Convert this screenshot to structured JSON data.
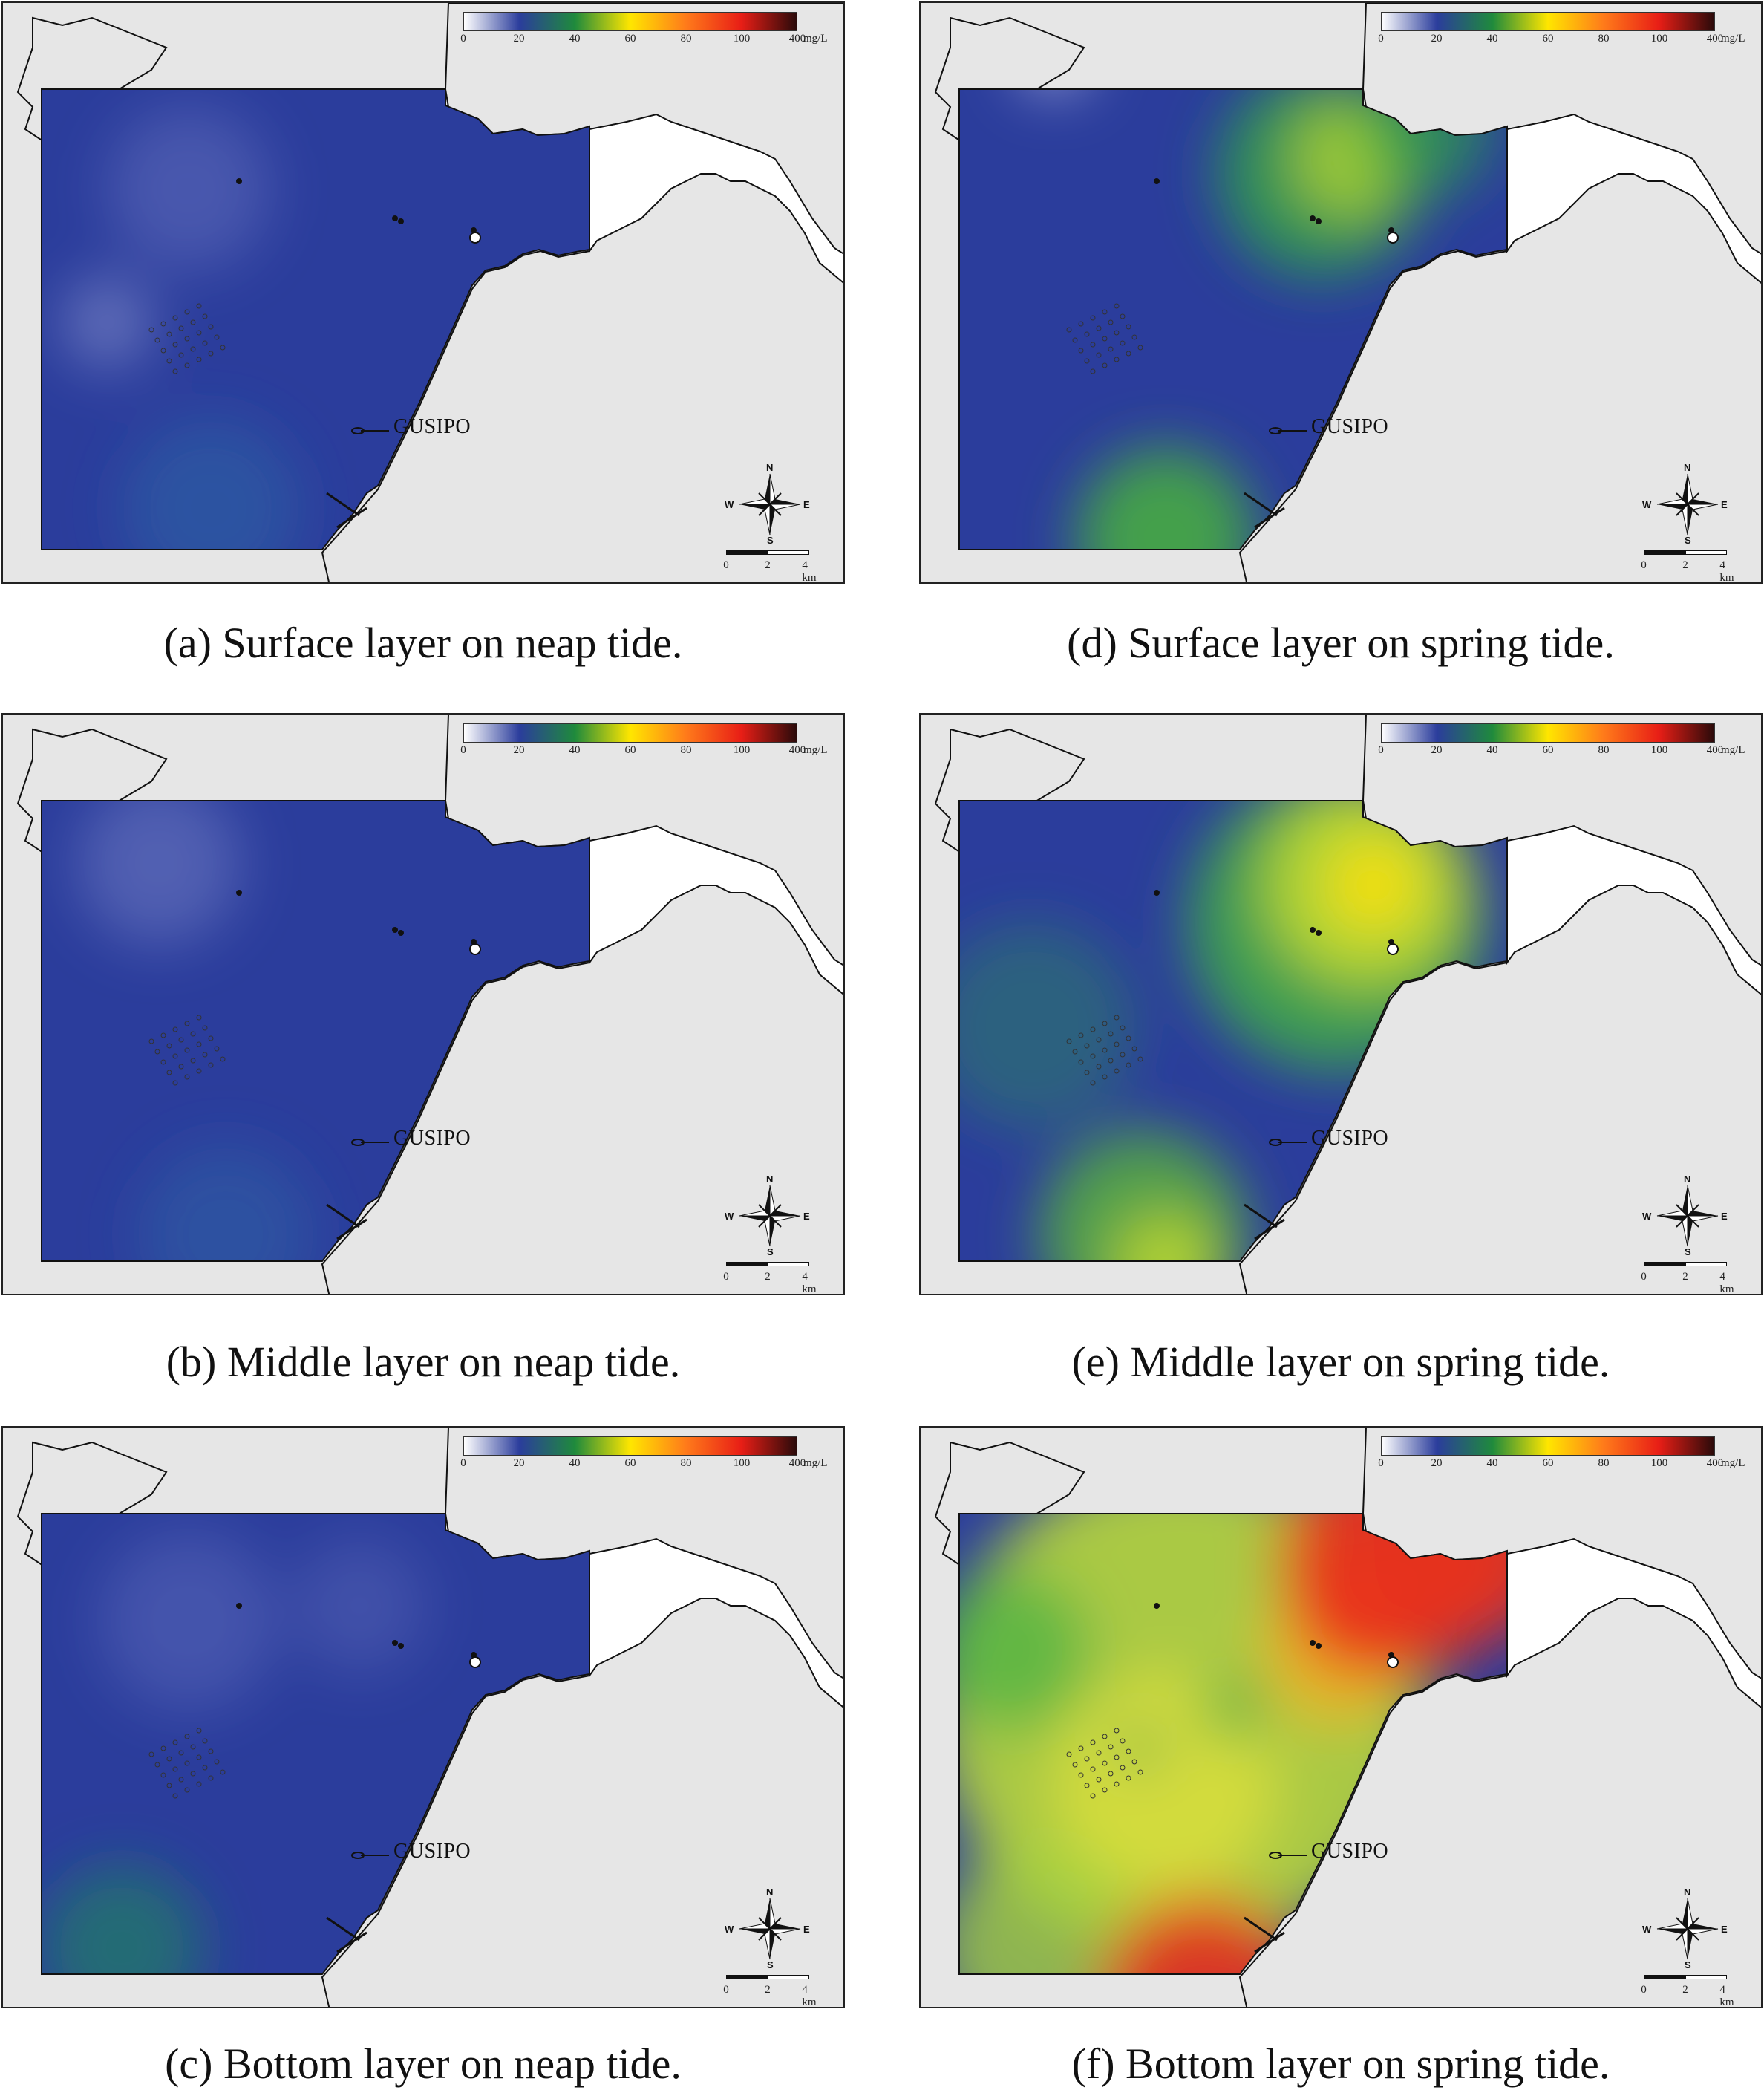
{
  "legend": {
    "ticks": [
      "0",
      "20",
      "40",
      "60",
      "80",
      "100",
      "400"
    ],
    "unit": "mg/L",
    "colors": [
      "#ffffff",
      "#2b3d9c",
      "#1f8a3c",
      "#ffe600",
      "#ff7b1a",
      "#e81e16",
      "#2a0a0a"
    ]
  },
  "map": {
    "station_label": "GUSIPO",
    "compass": {
      "n": "N",
      "s": "S",
      "e": "E",
      "w": "W"
    },
    "scale_ticks": [
      "0",
      "2",
      "4 km"
    ]
  },
  "panels": [
    {
      "id": "a",
      "caption": "(a) Surface layer on neap tide.",
      "scenario": "neap-surface"
    },
    {
      "id": "d",
      "caption": "(d) Surface layer on spring tide.",
      "scenario": "spring-surface"
    },
    {
      "id": "b",
      "caption": "(b) Middle layer on neap tide.",
      "scenario": "neap-middle"
    },
    {
      "id": "e",
      "caption": "(e) Middle layer on spring tide.",
      "scenario": "spring-middle"
    },
    {
      "id": "c",
      "caption": "(c) Bottom layer on neap tide.",
      "scenario": "neap-bottom"
    },
    {
      "id": "f",
      "caption": "(f) Bottom layer on spring tide.",
      "scenario": "spring-bottom"
    }
  ]
}
